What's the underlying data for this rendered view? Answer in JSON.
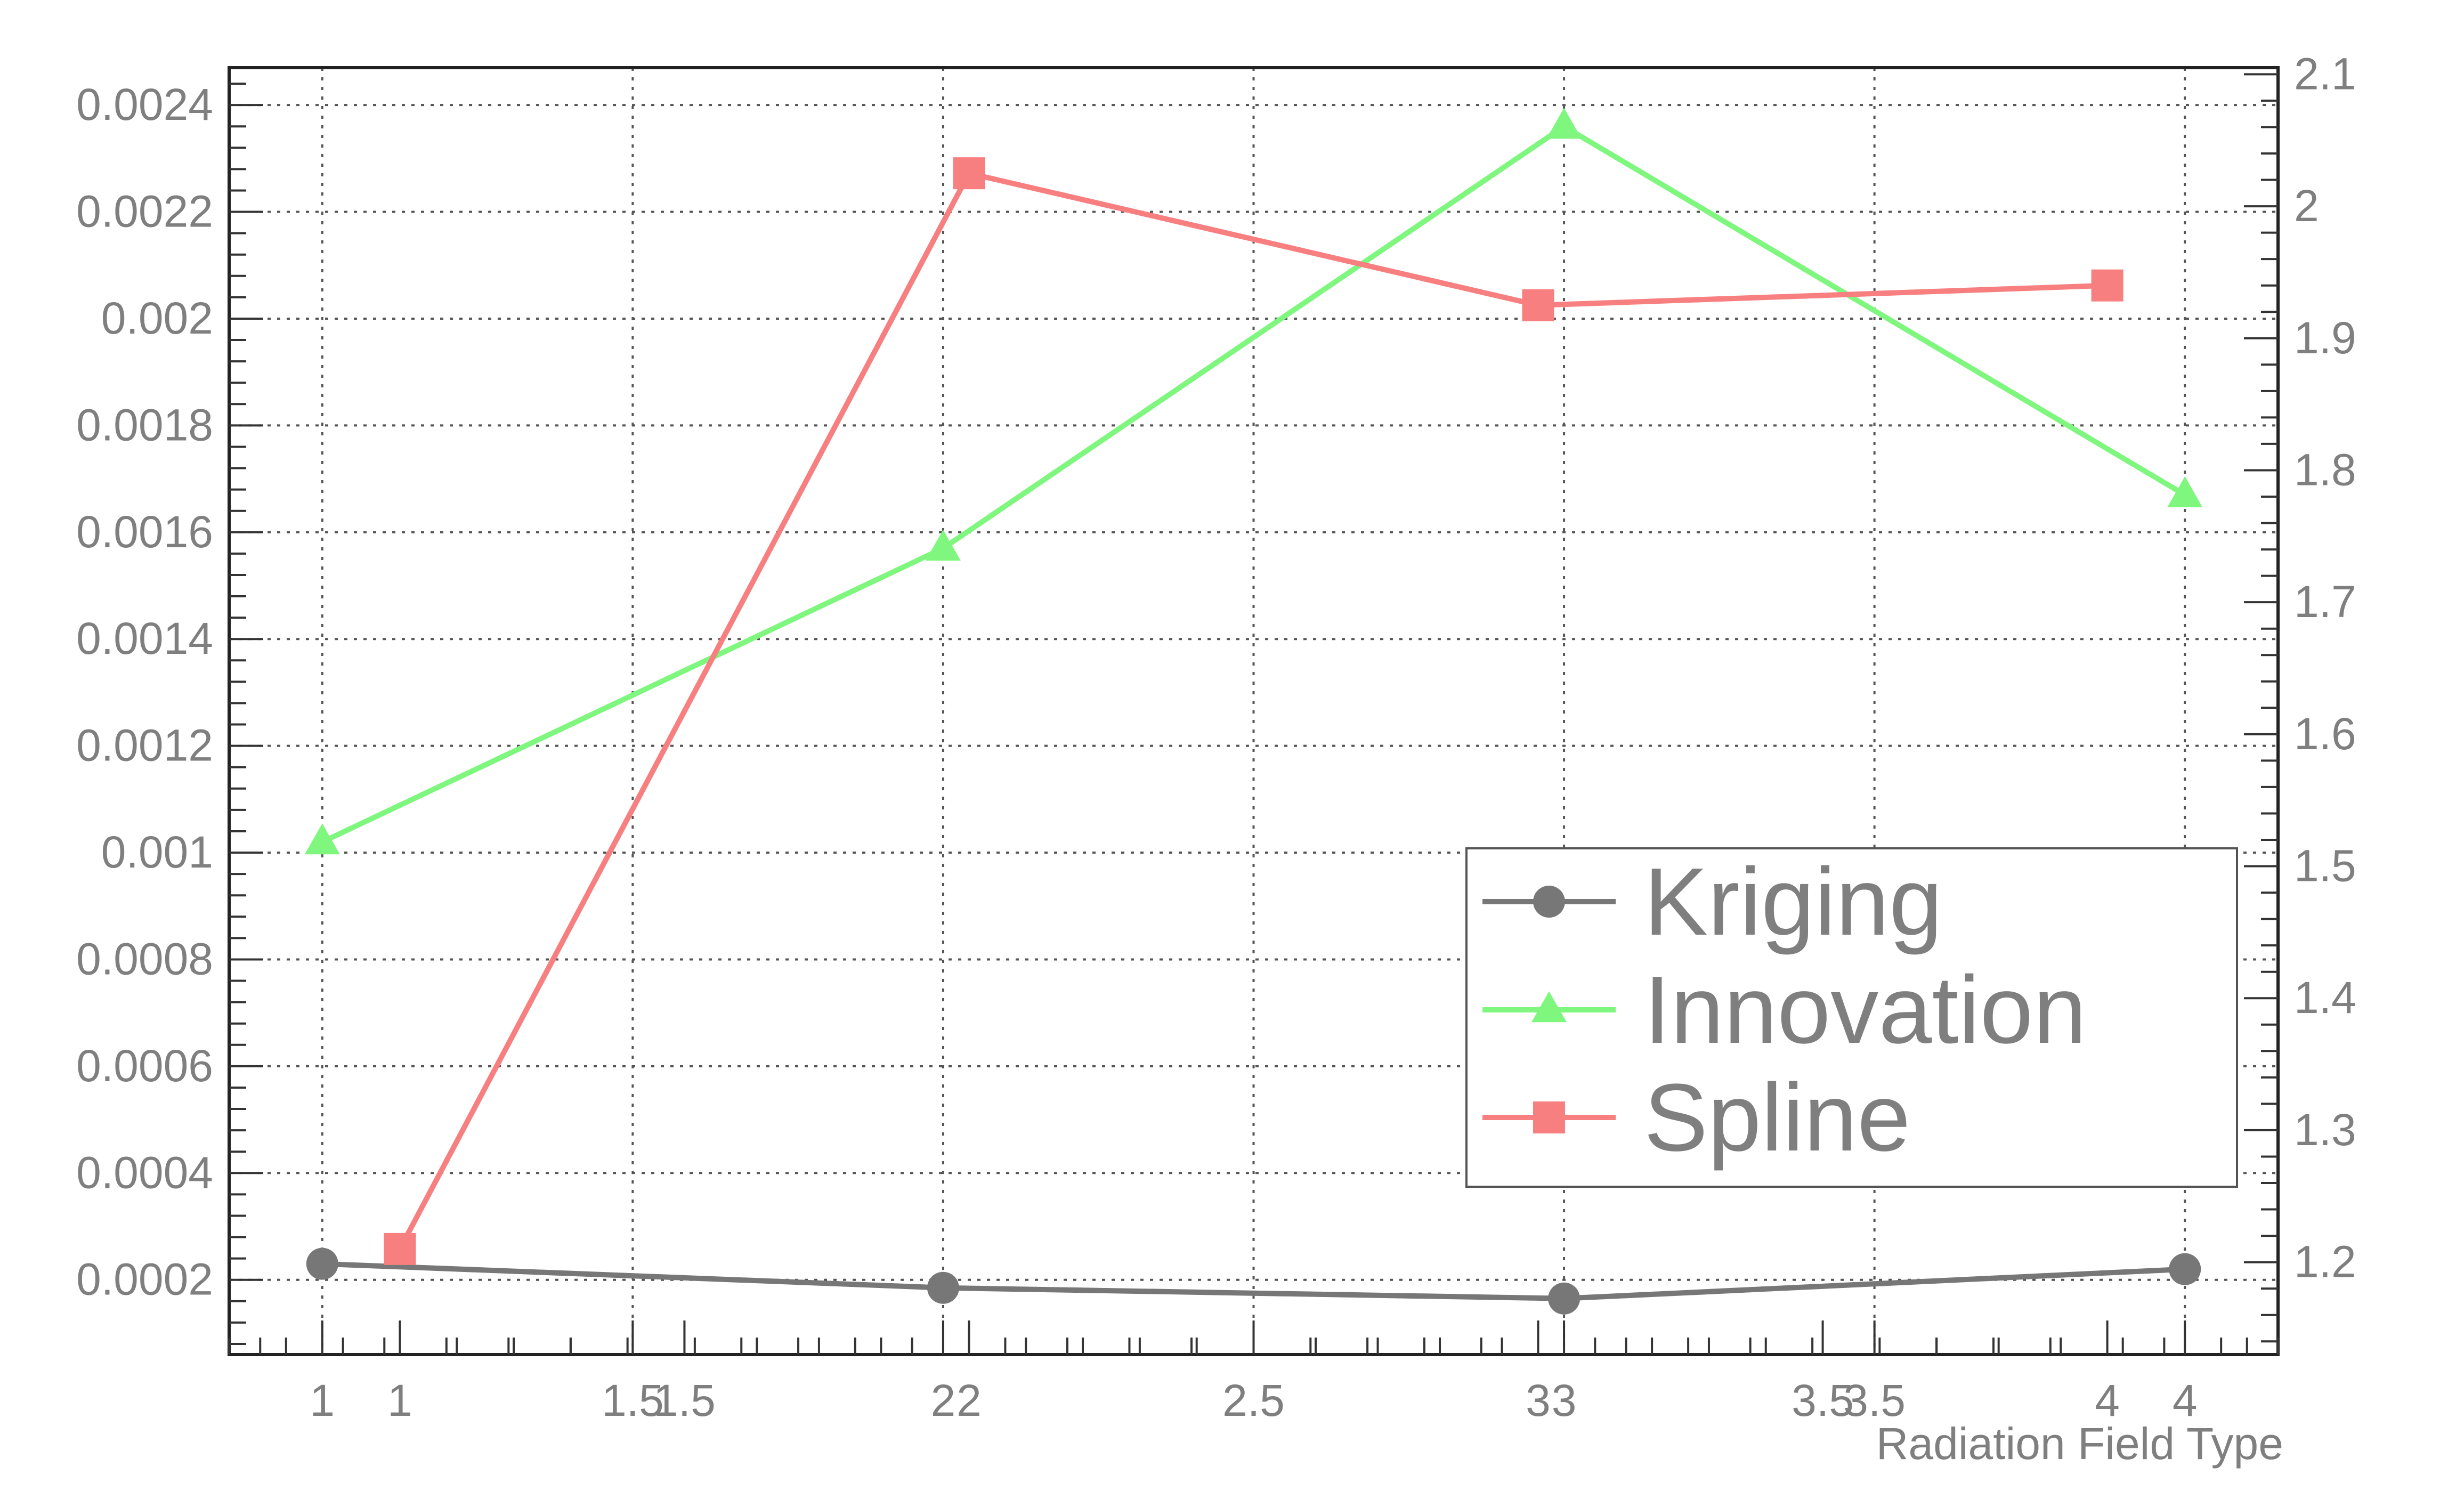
{
  "chart_data": {
    "type": "line",
    "xlabel": "Radiation Field Type",
    "ylabel": "",
    "grid": true,
    "legend_position": "lower-right",
    "axes": {
      "kriging_innovation": {
        "x_range": [
          0.85,
          4.15
        ],
        "y_range": [
          6e-05,
          0.00247
        ],
        "x_ticks": [
          1,
          1.5,
          2,
          2.5,
          3,
          3.5,
          4
        ],
        "x_tick_labels": [
          "1",
          "1.5",
          "2",
          "2.5",
          "3",
          "3.5",
          "4"
        ],
        "y_ticks": [
          0.0002,
          0.0004,
          0.0006,
          0.0008,
          0.001,
          0.0012,
          0.0014,
          0.0016,
          0.0018,
          0.002,
          0.0022,
          0.0024
        ],
        "y_tick_labels": [
          "0.0002",
          "0.0004",
          "0.0006",
          "0.0008",
          "0.001",
          "0.0012",
          "0.0014",
          "0.0016",
          "0.0018",
          "0.002",
          "0.0022",
          "0.0024"
        ]
      },
      "spline": {
        "x_range": [
          0.7,
          4.3
        ],
        "y_range": [
          1.13,
          2.105
        ],
        "x_ticks": [
          1,
          1.5,
          2,
          2.5,
          3,
          3.5,
          4
        ],
        "x_tick_labels": [
          "1",
          "1.5",
          "2",
          "2.5",
          "3",
          "3.5",
          "4"
        ],
        "y_ticks": [
          1.2,
          1.3,
          1.4,
          1.5,
          1.6,
          1.7,
          1.8,
          1.9,
          2,
          2.1
        ],
        "y_tick_labels": [
          "1.2",
          "1.3",
          "1.4",
          "1.5",
          "1.6",
          "1.7",
          "1.8",
          "1.9",
          "2",
          "2.1"
        ]
      }
    },
    "x": [
      1,
      2,
      3,
      4
    ],
    "series": [
      {
        "name": "Kriging",
        "axis": "kriging_innovation",
        "color": "#777777",
        "marker": "circle",
        "values": [
          0.00023,
          0.000185,
          0.000165,
          0.00022
        ]
      },
      {
        "name": "Innovation",
        "axis": "kriging_innovation",
        "color": "#7ff77f",
        "marker": "triangle",
        "values": [
          0.00102,
          0.00157,
          0.00236,
          0.00167
        ]
      },
      {
        "name": "Spline",
        "axis": "spline",
        "color": "#f77f7f",
        "marker": "square",
        "values": [
          1.21,
          2.025,
          1.925,
          1.94
        ]
      }
    ],
    "legend": [
      "Kriging",
      "Innovation",
      "Spline"
    ]
  }
}
